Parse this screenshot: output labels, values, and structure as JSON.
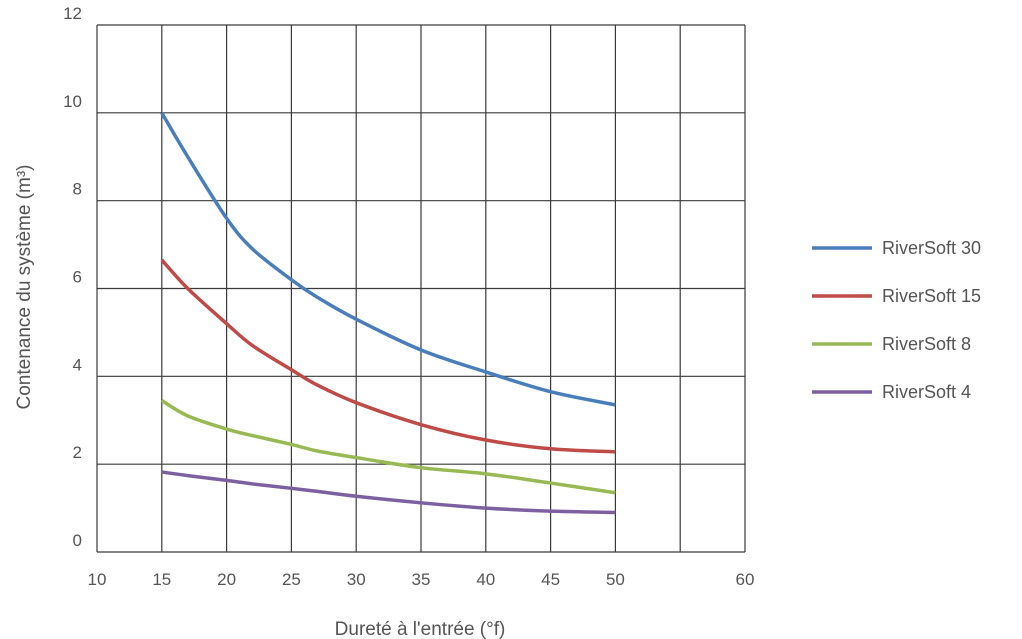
{
  "chart_data": {
    "type": "line",
    "title": "",
    "xlabel": "Dureté à l'entrée (°f)",
    "ylabel": "Contenance du système (m³)",
    "xlim": [
      10,
      60
    ],
    "ylim": [
      0,
      12
    ],
    "xticks": [
      10,
      15,
      20,
      25,
      30,
      35,
      40,
      45,
      50,
      60
    ],
    "xtick_labels": [
      "10",
      "15",
      "20",
      "25",
      "30",
      "35",
      "40",
      "45",
      "50",
      "60"
    ],
    "yticks": [
      0,
      2,
      4,
      6,
      8,
      10,
      12
    ],
    "ytick_labels": [
      "0",
      "2",
      "4",
      "6",
      "8",
      "10",
      "12"
    ],
    "grid": true,
    "legend_position": "right",
    "x": [
      15,
      17,
      20,
      22,
      25,
      27,
      30,
      35,
      40,
      45,
      50
    ],
    "series": [
      {
        "name": "RiverSoft 30",
        "color": "#4a7ebb",
        "values": [
          10.0,
          9.0,
          7.6,
          6.9,
          6.2,
          5.8,
          5.3,
          4.6,
          4.1,
          3.65,
          3.35
        ]
      },
      {
        "name": "RiverSoft 15",
        "color": "#be4b48",
        "values": [
          6.65,
          6.0,
          5.2,
          4.7,
          4.15,
          3.8,
          3.4,
          2.9,
          2.55,
          2.35,
          2.28
        ]
      },
      {
        "name": "RiverSoft 8",
        "color": "#98b954",
        "values": [
          3.45,
          3.1,
          2.8,
          2.65,
          2.45,
          2.3,
          2.15,
          1.92,
          1.78,
          1.57,
          1.35
        ]
      },
      {
        "name": "RiverSoft 4",
        "color": "#7d60a0",
        "values": [
          1.82,
          1.74,
          1.63,
          1.55,
          1.45,
          1.38,
          1.27,
          1.12,
          1.0,
          0.93,
          0.9
        ]
      }
    ]
  }
}
